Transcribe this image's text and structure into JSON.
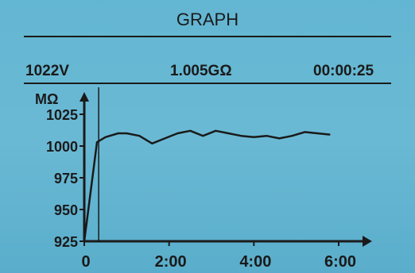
{
  "header": {
    "title": "GRAPH"
  },
  "status": {
    "voltage": "1022V",
    "resistance": "1.005GΩ",
    "elapsed": "00:00:25"
  },
  "chart_data": {
    "type": "line",
    "ylabel": "MΩ",
    "xlabel": "",
    "y_ticks": [
      "1025",
      "1000",
      "975",
      "950",
      "925"
    ],
    "x_ticks": [
      "0",
      "2:00",
      "4:00",
      "6:00"
    ],
    "ylim": [
      925,
      1035
    ],
    "xlim": [
      0,
      6.5
    ],
    "cursor_x": 0.34,
    "series": [
      {
        "x": [
          0,
          0.3,
          0.5,
          0.8,
          1.0,
          1.3,
          1.6,
          1.9,
          2.2,
          2.5,
          2.8,
          3.1,
          3.4,
          3.7,
          4.0,
          4.3,
          4.6,
          4.9,
          5.2,
          5.5,
          5.8
        ],
        "values": [
          925,
          1003,
          1007,
          1010,
          1010,
          1008,
          1002,
          1006,
          1010,
          1012,
          1008,
          1012,
          1010,
          1008,
          1007,
          1008,
          1006,
          1008,
          1011,
          1010,
          1009
        ]
      }
    ],
    "grid": false
  }
}
